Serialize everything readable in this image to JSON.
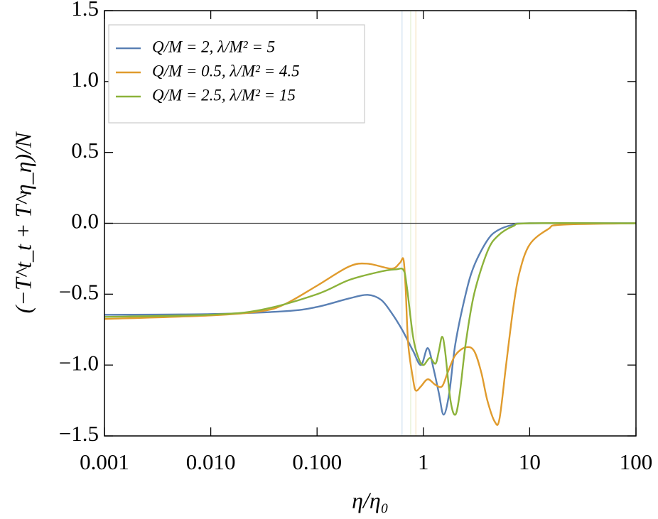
{
  "chart_data": {
    "type": "line",
    "log_x": true,
    "zero_line": true,
    "x_label": "η/η₀",
    "y_label": "(−T^t_t + T^η_η)/N",
    "xlim": [
      0.001,
      100
    ],
    "ylim": [
      -1.5,
      1.5
    ],
    "xticks": [
      0.001,
      {
        "value": 0.01,
        "label": "0.010"
      },
      {
        "value": 0.1,
        "label": "0.100"
      },
      1,
      10,
      100
    ],
    "yticks": [
      1.5,
      {
        "value": 1.0,
        "label": "1.0"
      },
      0.5,
      {
        "value": 0.0,
        "label": "0.0"
      },
      {
        "value": -0.5,
        "label": "−0.5"
      },
      {
        "value": -1.0,
        "label": "−1.0"
      },
      {
        "value": -1.5,
        "label": "−1.5"
      }
    ],
    "legend": "upper-left",
    "reference_lines": [
      {
        "x": 0.63,
        "color": "#cfe0f0"
      },
      {
        "x": 0.76,
        "color": "#e4efd0"
      },
      {
        "x": 0.85,
        "color": "#f5e3c0"
      }
    ],
    "series": [
      {
        "name": "Q/M = 2, λ/M² = 5",
        "color": "#5a80b4",
        "x": [
          0.001,
          0.01,
          0.05,
          0.1,
          0.2,
          0.3,
          0.4,
          0.5,
          0.63,
          0.8,
          0.95,
          1.1,
          1.25,
          1.4,
          1.55,
          1.75,
          2.0,
          2.5,
          3,
          4,
          5,
          7,
          10,
          100
        ],
        "values": [
          -0.645,
          -0.64,
          -0.62,
          -0.59,
          -0.53,
          -0.505,
          -0.54,
          -0.63,
          -0.75,
          -0.9,
          -1.0,
          -0.88,
          -1.03,
          -1.2,
          -1.35,
          -1.2,
          -0.85,
          -0.5,
          -0.3,
          -0.12,
          -0.05,
          -0.01,
          0,
          0
        ]
      },
      {
        "name": "Q/M = 0.5, λ/M² = 4.5",
        "color": "#e09b2d",
        "x": [
          0.001,
          0.01,
          0.03,
          0.05,
          0.1,
          0.2,
          0.3,
          0.5,
          0.6,
          0.65,
          0.68,
          0.72,
          0.8,
          0.85,
          0.95,
          1.1,
          1.3,
          1.5,
          1.7,
          2,
          2.5,
          3,
          3.5,
          4,
          4.7,
          5.2,
          6,
          7,
          8,
          10,
          15,
          20,
          100
        ],
        "values": [
          -0.675,
          -0.65,
          -0.62,
          -0.57,
          -0.44,
          -0.305,
          -0.285,
          -0.32,
          -0.28,
          -0.255,
          -0.45,
          -0.85,
          -1.1,
          -1.18,
          -1.15,
          -1.1,
          -1.14,
          -1.15,
          -1.05,
          -0.93,
          -0.875,
          -0.9,
          -1.05,
          -1.25,
          -1.4,
          -1.38,
          -1.0,
          -0.6,
          -0.35,
          -0.15,
          -0.04,
          -0.01,
          0
        ]
      },
      {
        "name": "Q/M = 2.5, λ/M² = 15",
        "color": "#8cb23a",
        "x": [
          0.001,
          0.01,
          0.03,
          0.1,
          0.2,
          0.4,
          0.55,
          0.65,
          0.7,
          0.8,
          0.9,
          1.0,
          1.15,
          1.3,
          1.4,
          1.5,
          1.6,
          1.8,
          2.0,
          2.2,
          2.5,
          3,
          4,
          5,
          7,
          10,
          100
        ],
        "values": [
          -0.66,
          -0.645,
          -0.61,
          -0.5,
          -0.4,
          -0.34,
          -0.325,
          -0.33,
          -0.45,
          -0.8,
          -0.95,
          -1.0,
          -0.95,
          -0.99,
          -0.9,
          -0.8,
          -0.9,
          -1.25,
          -1.35,
          -1.2,
          -0.85,
          -0.5,
          -0.2,
          -0.09,
          -0.02,
          0,
          0
        ]
      }
    ]
  }
}
